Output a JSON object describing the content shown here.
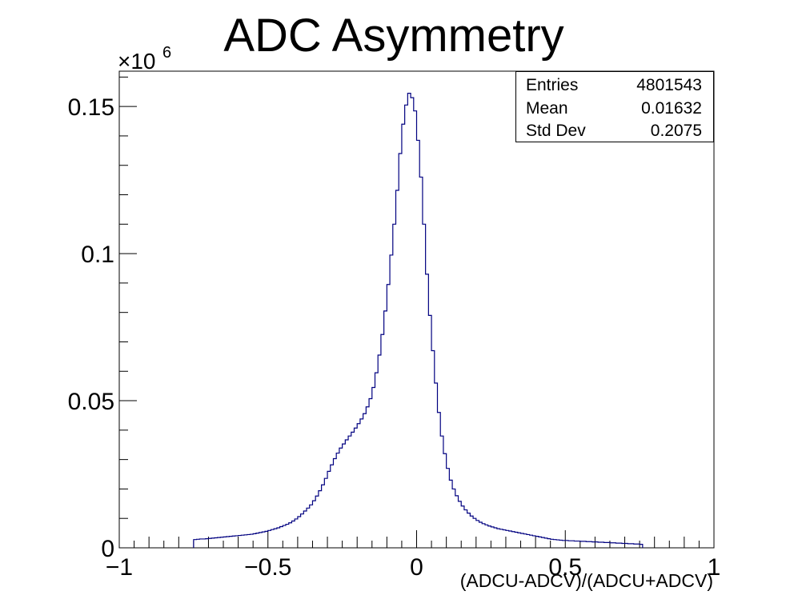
{
  "chart_data": {
    "type": "histogram",
    "title": "ADC Asymmetry",
    "xlabel": "(ADCU-ADCV)/(ADCU+ADCV)",
    "ylabel": "",
    "y_multiplier_label": "×10",
    "y_multiplier_exponent": "6",
    "xlim": [
      -1,
      1
    ],
    "ylim": [
      0,
      0.162
    ],
    "x_ticks": [
      -1,
      -0.5,
      0,
      0.5,
      1
    ],
    "x_tick_labels": [
      "−1",
      "−0.5",
      "0",
      "0.5",
      "1"
    ],
    "y_ticks": [
      0,
      0.05,
      0.1,
      0.15
    ],
    "y_tick_labels": [
      "0",
      "0.05",
      "0.1",
      "0.15"
    ],
    "line_color": "#000080",
    "series": [
      {
        "x_start": -0.75,
        "bin_width": 0.01,
        "values": [
          0.0028,
          0.0029,
          0.003,
          0.003,
          0.0031,
          0.0032,
          0.0033,
          0.0034,
          0.0035,
          0.0036,
          0.0037,
          0.0038,
          0.0039,
          0.004,
          0.0041,
          0.0042,
          0.0043,
          0.0044,
          0.0045,
          0.0046,
          0.0048,
          0.005,
          0.0052,
          0.0054,
          0.0056,
          0.0059,
          0.0062,
          0.0065,
          0.0068,
          0.0072,
          0.0076,
          0.008,
          0.0085,
          0.0091,
          0.0098,
          0.0106,
          0.0115,
          0.0125,
          0.0135,
          0.0146,
          0.016,
          0.0176,
          0.0194,
          0.0214,
          0.0236,
          0.026,
          0.0282,
          0.0303,
          0.0322,
          0.0339,
          0.0353,
          0.0367,
          0.038,
          0.0393,
          0.0407,
          0.0422,
          0.0438,
          0.0456,
          0.0479,
          0.0507,
          0.0545,
          0.0595,
          0.0655,
          0.0725,
          0.0805,
          0.0895,
          0.0995,
          0.11,
          0.1215,
          0.134,
          0.144,
          0.1505,
          0.1545,
          0.153,
          0.1485,
          0.1385,
          0.126,
          0.11,
          0.093,
          0.079,
          0.067,
          0.056,
          0.046,
          0.038,
          0.032,
          0.027,
          0.023,
          0.02,
          0.0177,
          0.0158,
          0.0142,
          0.0129,
          0.0118,
          0.0108,
          0.01,
          0.0093,
          0.0087,
          0.0082,
          0.0078,
          0.0074,
          0.0071,
          0.0068,
          0.0065,
          0.0063,
          0.0061,
          0.0059,
          0.0057,
          0.0055,
          0.0053,
          0.0051,
          0.0049,
          0.0047,
          0.0045,
          0.0043,
          0.0041,
          0.0039,
          0.0037,
          0.0035,
          0.0033,
          0.0031,
          0.0029,
          0.0028,
          0.0027,
          0.0026,
          0.0025,
          0.0025,
          0.0024,
          0.0024,
          0.0023,
          0.0023,
          0.0022,
          0.0022,
          0.0021,
          0.0021,
          0.002,
          0.002,
          0.0019,
          0.0019,
          0.0018,
          0.0018,
          0.0017,
          0.0017,
          0.0016,
          0.0016,
          0.0015,
          0.0015,
          0.0014,
          0.0014,
          0.0013,
          0.0013,
          0.0012
        ]
      }
    ],
    "stats": {
      "entries_label": "Entries",
      "entries_value": "4801543",
      "mean_label": "Mean",
      "mean_value": "0.01632",
      "std_label": "Std Dev",
      "std_value": "0.2075"
    }
  }
}
